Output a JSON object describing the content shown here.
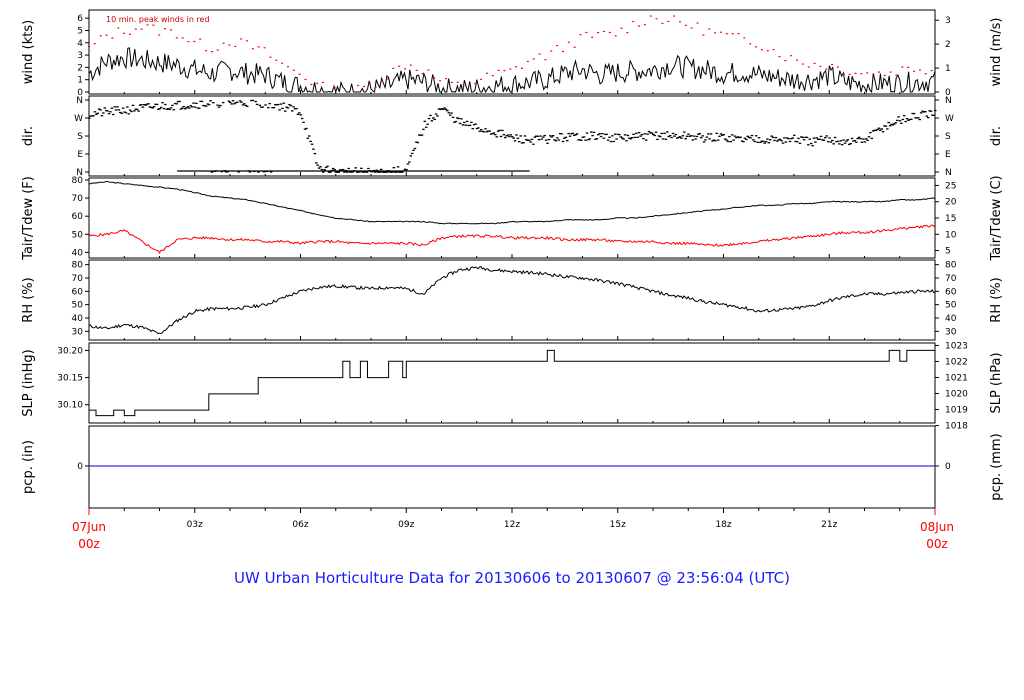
{
  "title": "UW Urban Horticulture Data for 20130606  to  20130607 @ 23:56:04  (UTC)",
  "time_axis": {
    "start_label_top": "07Jun",
    "start_label_bottom": "00z",
    "end_label_top": "08Jun",
    "end_label_bottom": "00z",
    "hour_ticks": [
      "03z",
      "06z",
      "09z",
      "12z",
      "15z",
      "18z",
      "21z"
    ]
  },
  "colors": {
    "primary": "#000000",
    "peak": "#ff0000",
    "dewpoint": "#ff0000",
    "precip": "#0000cc",
    "title": "#1a1aff"
  },
  "chart_data": [
    {
      "type": "line",
      "name": "wind",
      "ylabel_left": "wind (kts)",
      "ylabel_right": "wind (m/s)",
      "annotation": "10 min. peak winds in red",
      "ylim": [
        0,
        6.5
      ],
      "yticks_left": [
        "0",
        "1",
        "2",
        "3",
        "4",
        "5",
        "6"
      ],
      "yticks_right": [
        "0",
        "1",
        "2",
        "3"
      ],
      "x_hours": [
        0,
        0.5,
        1,
        1.5,
        2,
        2.5,
        3,
        3.5,
        4,
        4.5,
        5,
        5.5,
        6,
        6.5,
        7,
        7.5,
        8,
        8.5,
        9,
        9.5,
        10,
        10.5,
        11,
        11.5,
        12,
        12.5,
        13,
        13.5,
        14,
        14.5,
        15,
        15.5,
        16,
        16.5,
        17,
        17.5,
        18,
        18.5,
        19,
        19.5,
        20,
        20.5,
        21,
        21.5,
        22,
        22.5,
        23,
        23.5,
        24
      ],
      "values": [
        1.5,
        2.5,
        2.8,
        2.6,
        2.4,
        2.2,
        1.8,
        1.5,
        1.8,
        1.5,
        1.4,
        0.8,
        0.5,
        0.2,
        0.0,
        0.0,
        0.2,
        0.5,
        1.0,
        0.8,
        0.3,
        0.2,
        0.3,
        0.5,
        0.6,
        0.8,
        1.0,
        1.5,
        1.8,
        1.4,
        1.6,
        1.7,
        1.8,
        2.2,
        2.0,
        1.8,
        1.5,
        1.6,
        1.4,
        1.2,
        1.0,
        1.0,
        1.3,
        0.8,
        0.6,
        0.7,
        0.7,
        0.8,
        0.9
      ],
      "peak_values": [
        3.5,
        4.6,
        5.0,
        5.3,
        5.0,
        4.8,
        4.0,
        3.6,
        4.2,
        3.8,
        3.2,
        2.2,
        1.5,
        0.5,
        0.0,
        0.0,
        0.6,
        1.5,
        2.3,
        1.8,
        0.8,
        0.5,
        0.9,
        1.4,
        1.7,
        2.6,
        3.0,
        3.7,
        4.4,
        4.6,
        4.8,
        5.6,
        6.1,
        5.8,
        5.5,
        5.0,
        4.6,
        4.3,
        4.0,
        3.3,
        2.6,
        2.3,
        2.2,
        1.8,
        1.5,
        1.5,
        1.8,
        2.0,
        1.8
      ]
    },
    {
      "type": "scatter",
      "name": "direction",
      "ylabel_left": "dir.",
      "ylabel_right": "dir.",
      "categories": [
        "N",
        "E",
        "S",
        "W",
        "N"
      ],
      "ylim": [
        0,
        360
      ],
      "x_hours": [
        0,
        0.5,
        1,
        1.5,
        2,
        2.5,
        3,
        3.5,
        4,
        4.5,
        5,
        5.5,
        6,
        6.5,
        7,
        7.5,
        8,
        8.5,
        9,
        9.5,
        10,
        10.5,
        11,
        11.5,
        12,
        12.5,
        13,
        13.5,
        14,
        14.5,
        15,
        15.5,
        16,
        16.5,
        17,
        17.5,
        18,
        18.5,
        19,
        19.5,
        20,
        20.5,
        21,
        21.5,
        22,
        22.5,
        23,
        23.5,
        24
      ],
      "values": [
        290,
        300,
        310,
        320,
        330,
        335,
        340,
        345,
        350,
        350,
        345,
        330,
        300,
        20,
        0,
        0,
        0,
        0,
        10,
        230,
        320,
        250,
        220,
        200,
        170,
        160,
        165,
        175,
        180,
        180,
        170,
        175,
        185,
        180,
        180,
        170,
        175,
        165,
        170,
        160,
        165,
        150,
        165,
        150,
        160,
        220,
        260,
        280,
        290
      ]
    },
    {
      "type": "line",
      "name": "temperature",
      "ylabel_left": "Tair/Tdew (F)",
      "ylabel_right": "Tair/Tdew (C)",
      "ylim": [
        38,
        80
      ],
      "yticks_left": [
        "40",
        "50",
        "60",
        "70",
        "80"
      ],
      "yticks_right": [
        "5",
        "10",
        "15",
        "20",
        "25"
      ],
      "x_hours": [
        0,
        0.5,
        1,
        1.5,
        2,
        2.5,
        3,
        3.5,
        4,
        4.5,
        5,
        5.5,
        6,
        6.5,
        7,
        7.5,
        8,
        8.5,
        9,
        9.5,
        10,
        10.5,
        11,
        11.5,
        12,
        12.5,
        13,
        13.5,
        14,
        14.5,
        15,
        15.5,
        16,
        16.5,
        17,
        17.5,
        18,
        18.5,
        19,
        19.5,
        20,
        20.5,
        21,
        21.5,
        22,
        22.5,
        23,
        23.5,
        24
      ],
      "series": [
        {
          "values": [
            78,
            79,
            78,
            77,
            76,
            75,
            73,
            71,
            70,
            69,
            67,
            65,
            63,
            61,
            59,
            58,
            57,
            57,
            57,
            57,
            56,
            56,
            56,
            56,
            57,
            57,
            57,
            58,
            58,
            58,
            59,
            59,
            60,
            61,
            62,
            63,
            64,
            65,
            66,
            66,
            67,
            67,
            68,
            68,
            68,
            68,
            69,
            69,
            70
          ]
        },
        {
          "values": [
            49,
            50,
            52,
            46,
            40,
            47,
            48,
            48,
            47,
            47,
            46,
            46,
            45,
            46,
            46,
            45,
            45,
            45,
            45,
            44,
            48,
            49,
            49,
            49,
            48,
            48,
            48,
            47,
            47,
            47,
            46,
            46,
            46,
            45,
            45,
            44,
            44,
            45,
            46,
            47,
            48,
            49,
            50,
            51,
            51,
            52,
            53,
            54,
            55
          ]
        }
      ]
    },
    {
      "type": "line",
      "name": "humidity",
      "ylabel_left": "RH (%)",
      "ylabel_right": "RH (%)",
      "ylim": [
        25,
        82
      ],
      "yticks": [
        "30",
        "40",
        "50",
        "60",
        "70",
        "80"
      ],
      "x_hours": [
        0,
        0.5,
        1,
        1.5,
        2,
        2.5,
        3,
        3.5,
        4,
        4.5,
        5,
        5.5,
        6,
        6.5,
        7,
        7.5,
        8,
        8.5,
        9,
        9.5,
        10,
        10.5,
        11,
        11.5,
        12,
        12.5,
        13,
        13.5,
        14,
        14.5,
        15,
        15.5,
        16,
        16.5,
        17,
        17.5,
        18,
        18.5,
        19,
        19.5,
        20,
        20.5,
        21,
        21.5,
        22,
        22.5,
        23,
        23.5,
        24
      ],
      "values": [
        34,
        32,
        35,
        33,
        28,
        38,
        45,
        47,
        47,
        48,
        50,
        55,
        60,
        63,
        64,
        63,
        62,
        63,
        62,
        58,
        70,
        76,
        78,
        76,
        75,
        74,
        73,
        71,
        70,
        68,
        66,
        63,
        60,
        57,
        55,
        52,
        50,
        48,
        45,
        46,
        47,
        49,
        53,
        56,
        58,
        58,
        59,
        60,
        60
      ]
    },
    {
      "type": "line",
      "name": "pressure",
      "ylabel_left": "SLP (inHg)",
      "ylabel_right": "SLP (hPa)",
      "ylim": [
        30.07,
        30.21
      ],
      "yticks_left": [
        "30.10",
        "30.15",
        "30.20"
      ],
      "yticks_right": [
        "1018",
        "1019",
        "1020",
        "1021",
        "1022",
        "1023"
      ],
      "x_hours": [
        0,
        0.2,
        0.2,
        0.7,
        0.7,
        1.0,
        1.0,
        1.3,
        1.3,
        3.4,
        3.4,
        4.8,
        4.8,
        7.2,
        7.2,
        7.4,
        7.4,
        7.7,
        7.7,
        7.9,
        7.9,
        8.5,
        8.5,
        8.9,
        8.9,
        9.0,
        9.0,
        13.0,
        13.0,
        13.2,
        13.2,
        22.7,
        22.7,
        23.0,
        23.0,
        23.2,
        23.2,
        24
      ],
      "values": [
        30.09,
        30.09,
        30.08,
        30.08,
        30.09,
        30.09,
        30.08,
        30.08,
        30.09,
        30.09,
        30.12,
        30.12,
        30.15,
        30.15,
        30.18,
        30.18,
        30.15,
        30.15,
        30.18,
        30.18,
        30.15,
        30.15,
        30.18,
        30.18,
        30.15,
        30.15,
        30.18,
        30.18,
        30.2,
        30.2,
        30.18,
        30.18,
        30.2,
        30.2,
        30.18,
        30.18,
        30.2,
        30.2
      ]
    },
    {
      "type": "line",
      "name": "precipitation",
      "ylabel_left": "pcp. (in)",
      "ylabel_right": "pcp. (mm)",
      "yticks_left": [
        "0"
      ],
      "yticks_right": [
        "0"
      ],
      "x_hours": [
        0,
        24
      ],
      "values": [
        0,
        0
      ]
    }
  ]
}
